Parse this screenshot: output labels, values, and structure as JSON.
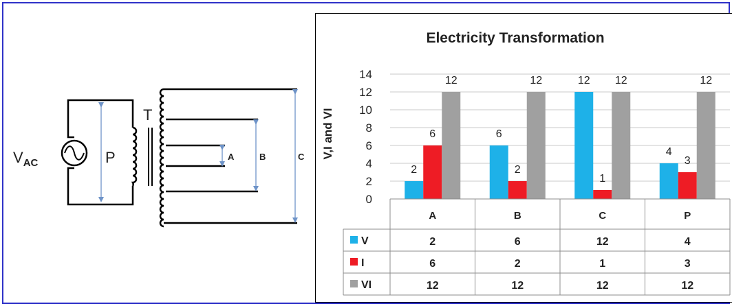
{
  "circuit": {
    "source_label_main": "V",
    "source_label_sub": "AC",
    "primary_label": "P",
    "transformer_label": "T",
    "tap_labels": [
      "A",
      "B",
      "C"
    ],
    "wire_color": "#000000",
    "arrow_color": "#6e93c8"
  },
  "chart_data": {
    "type": "bar",
    "title": "Electricity Transformation",
    "ylabel": "V,I and VI",
    "xlabel": "",
    "ylim": [
      0,
      14
    ],
    "yticks": [
      0,
      2,
      4,
      6,
      8,
      10,
      12,
      14
    ],
    "categories": [
      "A",
      "B",
      "C",
      "P"
    ],
    "series": [
      {
        "name": "V",
        "color": "#1eb1e8",
        "values": [
          2,
          6,
          12,
          4
        ]
      },
      {
        "name": "I",
        "color": "#ee1c25",
        "values": [
          6,
          2,
          1,
          3
        ]
      },
      {
        "name": "VI",
        "color": "#a0a0a0",
        "values": [
          12,
          12,
          12,
          12
        ]
      }
    ],
    "grid": true,
    "legend": "data-table"
  }
}
